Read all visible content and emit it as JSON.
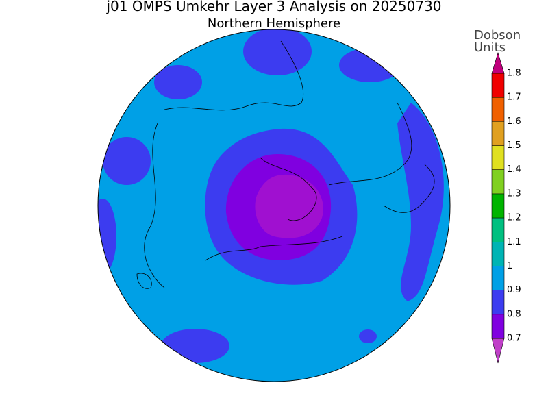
{
  "title": "j01 OMPS Umkehr Layer 3 Analysis on 20250730",
  "subtitle": "Northern Hemisphere",
  "colorbar": {
    "label": [
      "Dobson",
      "Units"
    ],
    "ticks": [
      0.7,
      0.8,
      0.9,
      1,
      1.1,
      1.2,
      1.3,
      1.4,
      1.5,
      1.6,
      1.7,
      1.8
    ],
    "colors": [
      "#c040c8",
      "#8000e0",
      "#3c3cf0",
      "#00a0e6",
      "#00b4b4",
      "#00c080",
      "#00b400",
      "#80d020",
      "#e0e020",
      "#e0a020",
      "#f06000",
      "#f00000",
      "#c0007c"
    ]
  }
}
